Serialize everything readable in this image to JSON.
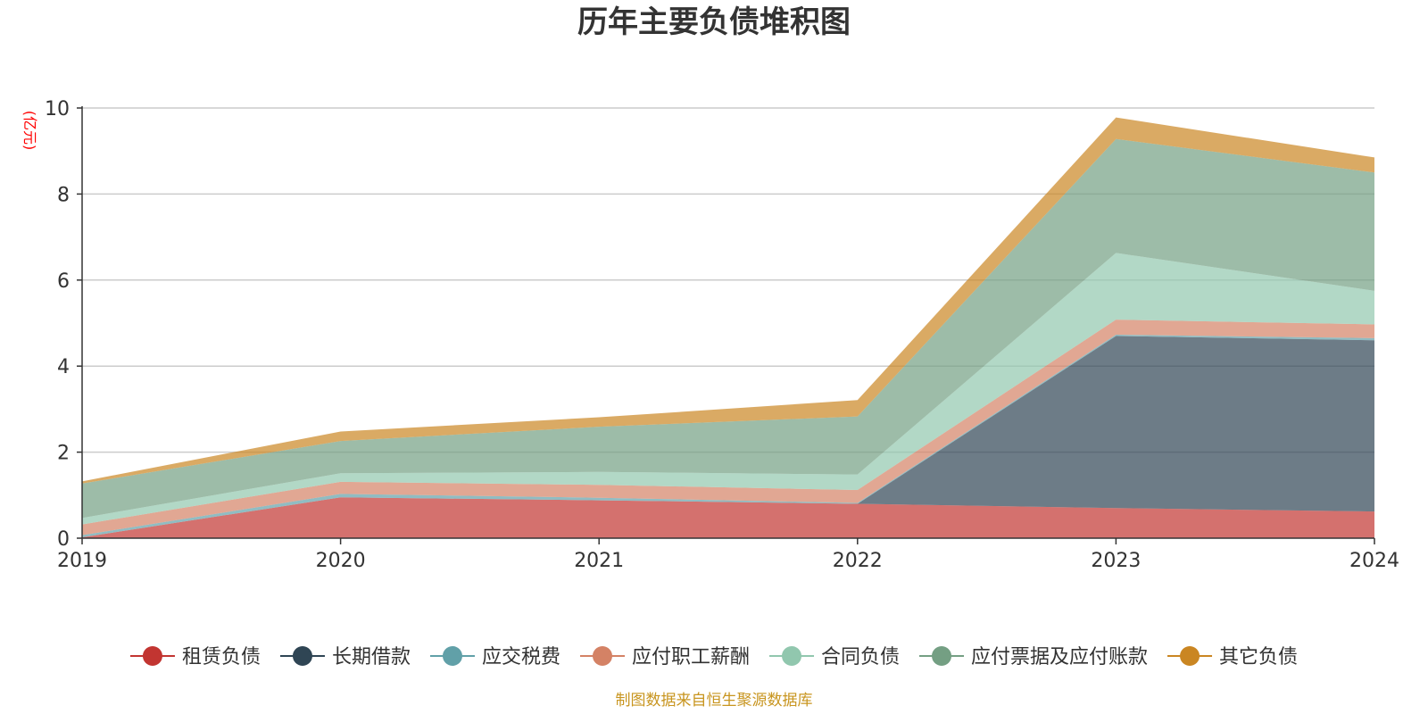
{
  "chart_data": {
    "type": "area",
    "stacked": true,
    "title": "历年主要负债堆积图",
    "unit_label": "(亿元)",
    "x": [
      "2019",
      "2020",
      "2021",
      "2022",
      "2023",
      "2024"
    ],
    "ylim": [
      0,
      10
    ],
    "yticks": [
      "0",
      "2",
      "4",
      "6",
      "8",
      "10"
    ],
    "grid": true,
    "legend_position": "bottom",
    "series": [
      {
        "name": "租赁负债",
        "color": "#c23531",
        "values": [
          0.02,
          0.95,
          0.88,
          0.8,
          0.7,
          0.62
        ]
      },
      {
        "name": "长期借款",
        "color": "#2f4554",
        "values": [
          0.0,
          0.0,
          0.0,
          0.0,
          4.0,
          3.98
        ]
      },
      {
        "name": "应交税费",
        "color": "#61a0a8",
        "values": [
          0.05,
          0.08,
          0.06,
          0.02,
          0.03,
          0.05
        ]
      },
      {
        "name": "应付职工薪酬",
        "color": "#d48265",
        "values": [
          0.25,
          0.28,
          0.3,
          0.3,
          0.35,
          0.32
        ]
      },
      {
        "name": "合同负债",
        "color": "#91c7ae",
        "values": [
          0.15,
          0.2,
          0.3,
          0.36,
          1.55,
          0.78
        ]
      },
      {
        "name": "应付票据及应付账款",
        "color": "#749f83",
        "values": [
          0.8,
          0.75,
          1.05,
          1.35,
          2.65,
          2.75
        ]
      },
      {
        "name": "其它负债",
        "color": "#ca8622",
        "values": [
          0.05,
          0.22,
          0.22,
          0.38,
          0.5,
          0.35
        ]
      }
    ]
  },
  "colors": {
    "title": "#333333",
    "unit_label": "#ff0000",
    "source": "#c8951f",
    "grid": "#cccccc",
    "axis": "#333333"
  },
  "source_note": "制图数据来自恒生聚源数据库"
}
